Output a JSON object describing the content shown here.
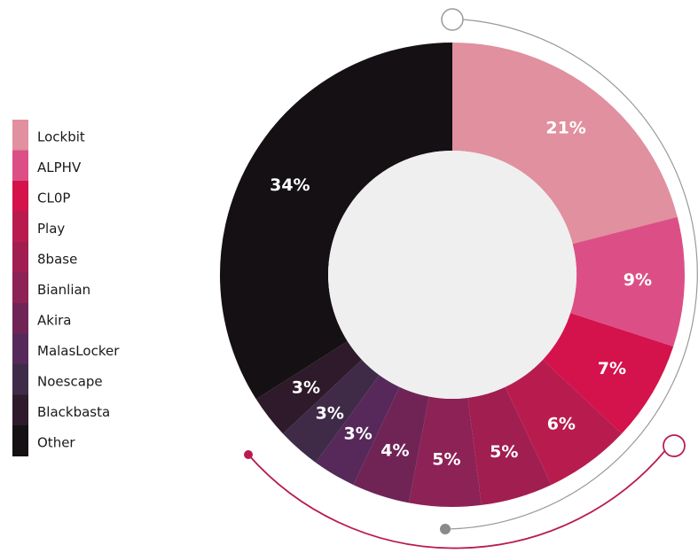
{
  "chart_data": {
    "type": "donut",
    "categories": [
      "Lockbit",
      "ALPHV",
      "CL0P",
      "Play",
      "8base",
      "Bianlian",
      "Akira",
      "MalasLocker",
      "Noescape",
      "Blackbasta",
      "Other"
    ],
    "values": [
      21,
      9,
      7,
      6,
      5,
      5,
      4,
      3,
      3,
      3,
      34
    ],
    "value_labels": [
      "21%",
      "9%",
      "7%",
      "6%",
      "5%",
      "5%",
      "4%",
      "3%",
      "3%",
      "3%",
      "34%"
    ],
    "colors": [
      "#e0909f",
      "#dc4f86",
      "#d4124b",
      "#b81c4e",
      "#a11e50",
      "#8c2255",
      "#702456",
      "#56295a",
      "#3f2b48",
      "#2e1a2a",
      "#141013"
    ],
    "legend": "left"
  }
}
